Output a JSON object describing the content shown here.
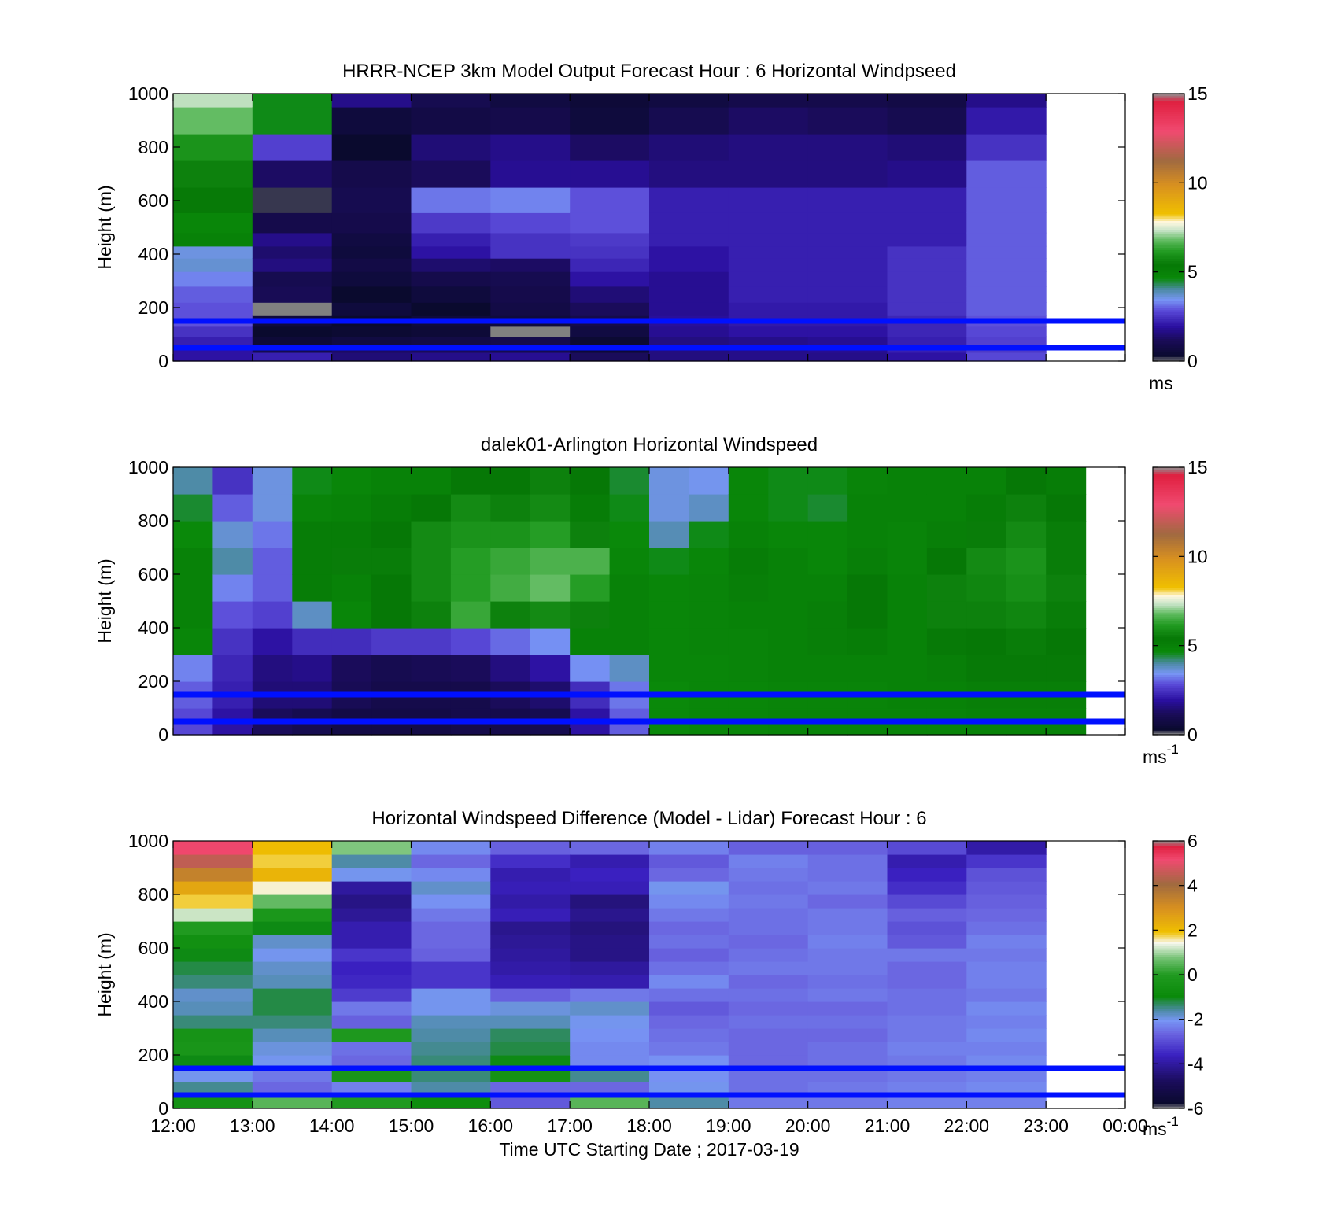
{
  "figure": {
    "xlabel": "Time UTC  Starting Date ; 2017-03-19",
    "x_ticks": [
      "12:00",
      "13:00",
      "14:00",
      "15:00",
      "16:00",
      "17:00",
      "18:00",
      "19:00",
      "20:00",
      "21:00",
      "22:00",
      "23:00",
      "00:00"
    ]
  },
  "colors": {
    "reference_lines": "#0010ff",
    "missing": "#808080",
    "windspeed_colormap": [
      [
        0.0,
        "#909090"
      ],
      [
        0.02,
        "#0a0a2e"
      ],
      [
        0.08,
        "#1a0c5a"
      ],
      [
        0.13,
        "#2a0fa0"
      ],
      [
        0.19,
        "#5a4ad8"
      ],
      [
        0.23,
        "#7896f5"
      ],
      [
        0.27,
        "#4a8aa0"
      ],
      [
        0.31,
        "#0a8a0a"
      ],
      [
        0.36,
        "#067806"
      ],
      [
        0.41,
        "#209a20"
      ],
      [
        0.45,
        "#5ab85a"
      ],
      [
        0.49,
        "#c8e4c8"
      ],
      [
        0.52,
        "#fff8e0"
      ],
      [
        0.55,
        "#f0c000"
      ],
      [
        0.66,
        "#d89020"
      ],
      [
        0.75,
        "#a06a40"
      ],
      [
        0.86,
        "#f04a70"
      ],
      [
        0.97,
        "#e02040"
      ],
      [
        1.0,
        "#909090"
      ]
    ],
    "difference_colormap": [
      [
        0.0,
        "#909090"
      ],
      [
        0.02,
        "#0a0a2e"
      ],
      [
        0.1,
        "#1a0c5a"
      ],
      [
        0.2,
        "#3a20c0"
      ],
      [
        0.28,
        "#6a64e0"
      ],
      [
        0.33,
        "#7896f5"
      ],
      [
        0.37,
        "#4a8aa0"
      ],
      [
        0.42,
        "#0a8a0a"
      ],
      [
        0.5,
        "#209a20"
      ],
      [
        0.56,
        "#70c070"
      ],
      [
        0.62,
        "#f8f8f0"
      ],
      [
        0.66,
        "#f0c000"
      ],
      [
        0.75,
        "#d89020"
      ],
      [
        0.84,
        "#a06a40"
      ],
      [
        0.93,
        "#f04a70"
      ],
      [
        0.98,
        "#e02040"
      ],
      [
        1.0,
        "#909090"
      ]
    ]
  },
  "chart_data": [
    {
      "type": "heatmap",
      "title": "HRRR-NCEP 3km Model Output   Forecast Hour : 6 Horizontal Windpseed",
      "ylabel": "Height (m)",
      "colorbar_unit": "ms",
      "colorbar_ticks": [
        "0",
        "5",
        "10",
        "15"
      ],
      "clim": [
        0,
        15
      ],
      "xlim_hours": [
        12,
        24
      ],
      "ylim": [
        0,
        1000
      ],
      "y_ticks": [
        "0",
        "200",
        "400",
        "600",
        "800",
        "1000"
      ],
      "reference_lines_m": [
        150,
        50
      ],
      "hours": [
        12,
        13,
        14,
        15,
        16,
        17,
        18,
        19,
        20,
        21,
        22
      ],
      "heights_m": [
        25,
        40,
        75,
        110,
        150,
        190,
        250,
        310,
        360,
        410,
        450,
        510,
        600,
        700,
        800,
        900,
        1000
      ],
      "values_ms": [
        [
          2.0,
          2.0,
          2.2,
          2.5,
          2.9,
          2.9,
          3.0,
          3.3,
          3.7,
          3.6,
          5.0,
          4.8,
          5.3,
          5.6,
          6.0,
          6.8,
          7.3
        ],
        [
          2.2,
          1.0,
          0.5,
          0.3,
          0.6,
          null,
          1.1,
          1.0,
          1.6,
          1.4,
          1.7,
          0.9,
          0.2,
          1.3,
          2.7,
          4.6,
          4.6
        ],
        [
          1.5,
          1.3,
          0.7,
          0.4,
          0.3,
          0.6,
          0.3,
          0.6,
          0.8,
          0.6,
          0.7,
          0.9,
          1.0,
          0.9,
          0.3,
          0.6,
          1.7
        ],
        [
          1.7,
          1.2,
          0.8,
          0.5,
          0.6,
          0.3,
          0.6,
          0.9,
          1.4,
          2.0,
          2.2,
          2.6,
          3.2,
          1.2,
          1.5,
          0.8,
          1.0
        ],
        [
          1.8,
          1.0,
          0.9,
          null,
          0.6,
          0.8,
          0.9,
          1.0,
          1.3,
          2.5,
          2.5,
          2.8,
          3.3,
          1.8,
          1.7,
          0.9,
          0.7
        ],
        [
          1.2,
          0.5,
          0.4,
          0.7,
          0.9,
          1.2,
          1.5,
          2.0,
          2.3,
          2.5,
          2.6,
          2.9,
          2.9,
          1.8,
          1.3,
          0.6,
          0.5
        ],
        [
          1.6,
          1.6,
          1.6,
          1.8,
          1.9,
          1.8,
          1.8,
          1.8,
          2.0,
          2.0,
          2.2,
          2.2,
          2.2,
          1.6,
          1.5,
          1.0,
          0.7
        ],
        [
          1.7,
          1.7,
          1.7,
          2.0,
          2.1,
          2.1,
          2.2,
          2.2,
          2.2,
          2.2,
          2.2,
          2.2,
          2.2,
          1.6,
          1.6,
          1.3,
          0.9
        ],
        [
          1.7,
          1.8,
          1.8,
          2.0,
          2.1,
          2.1,
          2.2,
          2.2,
          2.2,
          2.2,
          2.2,
          2.2,
          2.2,
          1.6,
          1.6,
          1.2,
          0.9
        ],
        [
          2.0,
          2.2,
          2.2,
          2.3,
          2.3,
          2.5,
          2.5,
          2.5,
          2.5,
          2.5,
          2.2,
          2.2,
          2.2,
          1.7,
          1.5,
          1.0,
          0.8
        ],
        [
          2.8,
          2.6,
          2.7,
          2.8,
          2.9,
          3.0,
          3.0,
          3.0,
          3.0,
          3.0,
          3.0,
          3.0,
          3.0,
          3.0,
          2.5,
          2.1,
          1.7
        ]
      ]
    },
    {
      "type": "heatmap",
      "title": "dalek01-Arlington  Horizontal Windspeed",
      "ylabel": "Height (m)",
      "colorbar_unit": "ms",
      "colorbar_unit_exponent": "-1",
      "colorbar_ticks": [
        "0",
        "5",
        "10",
        "15"
      ],
      "clim": [
        0,
        15
      ],
      "xlim_hours": [
        12,
        24
      ],
      "ylim": [
        0,
        1000
      ],
      "y_ticks": [
        "0",
        "200",
        "400",
        "600",
        "800",
        "1000"
      ],
      "reference_lines_m": [
        150,
        50
      ],
      "hours": [
        12.0,
        12.5,
        13.0,
        13.5,
        14.0,
        14.5,
        15.0,
        15.5,
        16.0,
        16.5,
        17.0,
        17.5,
        18.0,
        18.5,
        19.0,
        19.5,
        20.0,
        20.5,
        21.0,
        21.5,
        22.0,
        22.5,
        23.0
      ],
      "heights_m": [
        50,
        150,
        250,
        350,
        450,
        550,
        650,
        750,
        850,
        950
      ],
      "values_ms": [
        [
          2.8,
          3.0,
          3.3,
          4.8,
          5.0,
          5.0,
          5.0,
          4.7,
          4.5,
          4.0
        ],
        [
          2.0,
          2.2,
          2.3,
          2.5,
          2.9,
          3.3,
          4.0,
          3.7,
          3.0,
          2.5
        ],
        [
          1.2,
          1.5,
          1.6,
          2.0,
          2.7,
          3.0,
          3.0,
          3.2,
          3.6,
          3.6
        ],
        [
          1.0,
          1.5,
          1.7,
          2.4,
          3.8,
          5.2,
          5.2,
          5.2,
          4.9,
          4.6
        ],
        [
          0.8,
          1.1,
          1.2,
          2.4,
          4.8,
          5.0,
          5.5,
          5.2,
          5.0,
          4.8
        ],
        [
          0.8,
          0.9,
          1.0,
          2.6,
          5.4,
          5.4,
          5.5,
          5.4,
          5.2,
          5.0
        ],
        [
          0.8,
          0.9,
          1.1,
          2.6,
          5.6,
          5.8,
          5.8,
          5.8,
          5.4,
          5.0
        ],
        [
          0.9,
          0.9,
          1.2,
          2.8,
          6.4,
          6.2,
          6.2,
          6.0,
          5.8,
          5.4
        ],
        [
          0.9,
          1.2,
          1.6,
          3.1,
          5.6,
          6.5,
          6.4,
          6.0,
          5.6,
          5.4
        ],
        [
          1.0,
          1.4,
          2.0,
          3.4,
          5.8,
          6.8,
          6.6,
          6.2,
          5.8,
          5.6
        ],
        [
          2.0,
          2.4,
          3.4,
          5.0,
          5.6,
          6.2,
          6.6,
          5.6,
          5.2,
          5.4
        ],
        [
          3.0,
          3.2,
          3.8,
          5.0,
          5.0,
          5.0,
          4.8,
          4.7,
          4.6,
          4.5
        ],
        [
          4.7,
          4.7,
          4.8,
          4.8,
          4.8,
          4.8,
          4.6,
          3.9,
          3.6,
          3.6
        ],
        [
          4.8,
          4.8,
          4.8,
          4.9,
          4.9,
          4.9,
          4.8,
          4.6,
          3.8,
          3.5
        ],
        [
          4.8,
          4.8,
          4.9,
          4.9,
          5.0,
          5.1,
          5.2,
          5.0,
          4.8,
          4.8
        ],
        [
          4.9,
          4.9,
          5.0,
          5.0,
          5.0,
          5.0,
          5.0,
          4.8,
          4.6,
          4.6
        ],
        [
          4.9,
          4.9,
          5.0,
          5.1,
          5.1,
          5.0,
          4.8,
          4.8,
          4.5,
          4.6
        ],
        [
          4.9,
          4.9,
          5.0,
          5.2,
          5.4,
          5.4,
          5.1,
          5.0,
          5.0,
          4.9
        ],
        [
          4.9,
          5.0,
          5.0,
          5.0,
          5.0,
          5.0,
          4.9,
          4.9,
          5.0,
          5.0
        ],
        [
          4.9,
          5.0,
          5.1,
          5.3,
          5.6,
          5.6,
          5.4,
          5.1,
          5.0,
          5.0
        ],
        [
          5.0,
          5.1,
          5.3,
          5.4,
          5.6,
          5.7,
          5.8,
          5.5,
          5.2,
          5.0
        ],
        [
          5.0,
          5.1,
          5.3,
          5.5,
          5.7,
          5.9,
          6.0,
          5.8,
          5.6,
          5.4
        ],
        [
          5.0,
          5.1,
          5.3,
          5.4,
          5.5,
          5.6,
          5.5,
          5.5,
          5.4,
          5.2
        ]
      ]
    },
    {
      "type": "heatmap",
      "title": "Horizontal Windspeed Difference (Model - Lidar) Forecast Hour : 6",
      "ylabel": "Height (m)",
      "colorbar_unit": "ms",
      "colorbar_unit_exponent": "-1",
      "colorbar_ticks": [
        "-6",
        "-4",
        "-2",
        "0",
        "2",
        "4",
        "6"
      ],
      "clim": [
        -6,
        6
      ],
      "xlim_hours": [
        12,
        24
      ],
      "ylim": [
        0,
        1000
      ],
      "y_ticks": [
        "0",
        "200",
        "400",
        "600",
        "800",
        "1000"
      ],
      "reference_lines_m": [
        150,
        50
      ],
      "hours": [
        12,
        13,
        14,
        15,
        16,
        17,
        18,
        19,
        20,
        21,
        22
      ],
      "heights_m": [
        25,
        75,
        125,
        175,
        225,
        275,
        325,
        375,
        425,
        475,
        525,
        575,
        625,
        675,
        725,
        775,
        825,
        875,
        925,
        975
      ],
      "values_ms": [
        [
          -0.5,
          -1.5,
          -2.0,
          -1.0,
          -0.3,
          -0.4,
          -1.4,
          -1.7,
          -1.8,
          -1.4,
          -1.2,
          -1.0,
          -0.6,
          0.0,
          1.2,
          1.8,
          2.5,
          3.4,
          4.5,
          5.2
        ],
        [
          0.5,
          -2.6,
          -2.4,
          -2.0,
          -1.9,
          -1.7,
          -1.4,
          -1.2,
          -1.2,
          -1.7,
          -1.8,
          -2.0,
          -1.8,
          -1.0,
          -0.2,
          0.6,
          1.5,
          2.2,
          1.8,
          2.0
        ],
        [
          0.0,
          -2.3,
          -0.3,
          -2.6,
          -2.5,
          -0.1,
          -2.7,
          -2.4,
          -3.2,
          -3.5,
          -3.6,
          -3.3,
          -3.8,
          -3.8,
          -4.1,
          -4.3,
          -4.0,
          -2.0,
          -1.6,
          0.8
        ],
        [
          -0.8,
          -1.6,
          -1.4,
          -1.4,
          -1.5,
          -1.6,
          -1.7,
          -2.0,
          -2.0,
          -3.3,
          -3.3,
          -2.7,
          -2.6,
          -2.6,
          -2.4,
          -2.1,
          -1.8,
          -2.2,
          -2.6,
          -2.2
        ],
        [
          -2.8,
          -2.6,
          -0.5,
          -1.0,
          -1.2,
          -1.3,
          -1.7,
          -1.9,
          -2.7,
          -3.7,
          -3.9,
          -4.0,
          -4.1,
          -4.2,
          -3.7,
          -3.9,
          -3.7,
          -3.8,
          -3.4,
          -2.7
        ],
        [
          0.5,
          -2.6,
          -1.5,
          -2.2,
          -2.2,
          -2.1,
          -2.0,
          -1.8,
          -2.4,
          -3.8,
          -4.0,
          -4.3,
          -4.3,
          -4.4,
          -4.2,
          -4.4,
          -3.7,
          -3.6,
          -3.8,
          -2.6
        ],
        [
          -1.6,
          -2.0,
          -2.1,
          -2.1,
          -2.4,
          -2.5,
          -2.6,
          -2.8,
          -2.5,
          -2.2,
          -2.5,
          -2.7,
          -2.5,
          -2.6,
          -2.4,
          -2.2,
          -2.0,
          -2.6,
          -2.8,
          -2.3
        ],
        [
          -2.4,
          -2.5,
          -2.5,
          -2.6,
          -2.6,
          -2.6,
          -2.5,
          -2.6,
          -2.5,
          -2.6,
          -2.4,
          -2.5,
          -2.6,
          -2.5,
          -2.5,
          -2.4,
          -2.5,
          -2.4,
          -2.3,
          -2.7
        ],
        [
          -2.4,
          -2.4,
          -2.5,
          -2.5,
          -2.5,
          -2.6,
          -2.5,
          -2.6,
          -2.4,
          -2.5,
          -2.4,
          -2.4,
          -2.3,
          -2.4,
          -2.4,
          -2.6,
          -2.4,
          -2.5,
          -2.5,
          -2.7
        ],
        [
          -2.3,
          -2.3,
          -2.4,
          -2.4,
          -2.3,
          -2.4,
          -2.4,
          -2.5,
          -2.5,
          -2.6,
          -2.6,
          -2.4,
          -2.8,
          -2.9,
          -2.7,
          -3.0,
          -3.4,
          -3.6,
          -3.8,
          -3.0
        ],
        [
          -2.3,
          -2.2,
          -2.3,
          -2.2,
          -2.3,
          -2.2,
          -2.3,
          -2.2,
          -2.4,
          -2.3,
          -2.3,
          -2.4,
          -2.3,
          -2.5,
          -2.6,
          -2.7,
          -2.8,
          -2.9,
          -3.3,
          -3.9
        ]
      ]
    }
  ]
}
